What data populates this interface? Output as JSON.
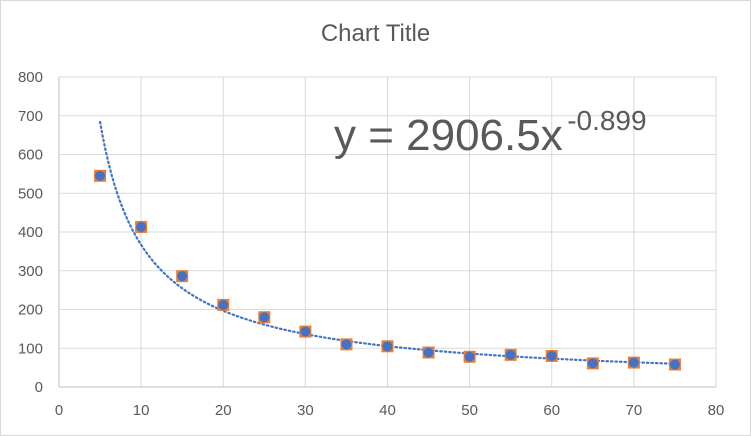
{
  "chart_data": {
    "type": "scatter",
    "title": "Chart Title",
    "xlabel": "",
    "ylabel": "",
    "xlim": [
      0,
      80
    ],
    "ylim": [
      0,
      800
    ],
    "x_ticks": [
      "0",
      "10",
      "20",
      "30",
      "40",
      "50",
      "60",
      "70",
      "80"
    ],
    "y_ticks": [
      "0",
      "100",
      "200",
      "300",
      "400",
      "500",
      "600",
      "700",
      "800"
    ],
    "grid": true,
    "legend": "none",
    "series": [
      {
        "x": [
          5,
          10,
          15,
          20,
          25,
          30,
          35,
          40,
          45,
          50,
          55,
          60,
          65,
          70,
          75
        ],
        "y": [
          545,
          413,
          286,
          212,
          180,
          143,
          110,
          105,
          89,
          78,
          83,
          80,
          61,
          63,
          58
        ],
        "marker_fill": "#4472c4",
        "marker_edge": "#ed7d31"
      }
    ],
    "trendline": {
      "type": "power",
      "a": 2906.5,
      "b": -0.899,
      "x_range": [
        5,
        75
      ],
      "color": "#4472c4",
      "style": "dotted",
      "equation_label": {
        "base": "y = 2906.5x",
        "exponent": "-0.899"
      }
    },
    "colors": {
      "grid": "#d9d9d9",
      "axis": "#bfbfbf",
      "text": "#595959"
    }
  }
}
